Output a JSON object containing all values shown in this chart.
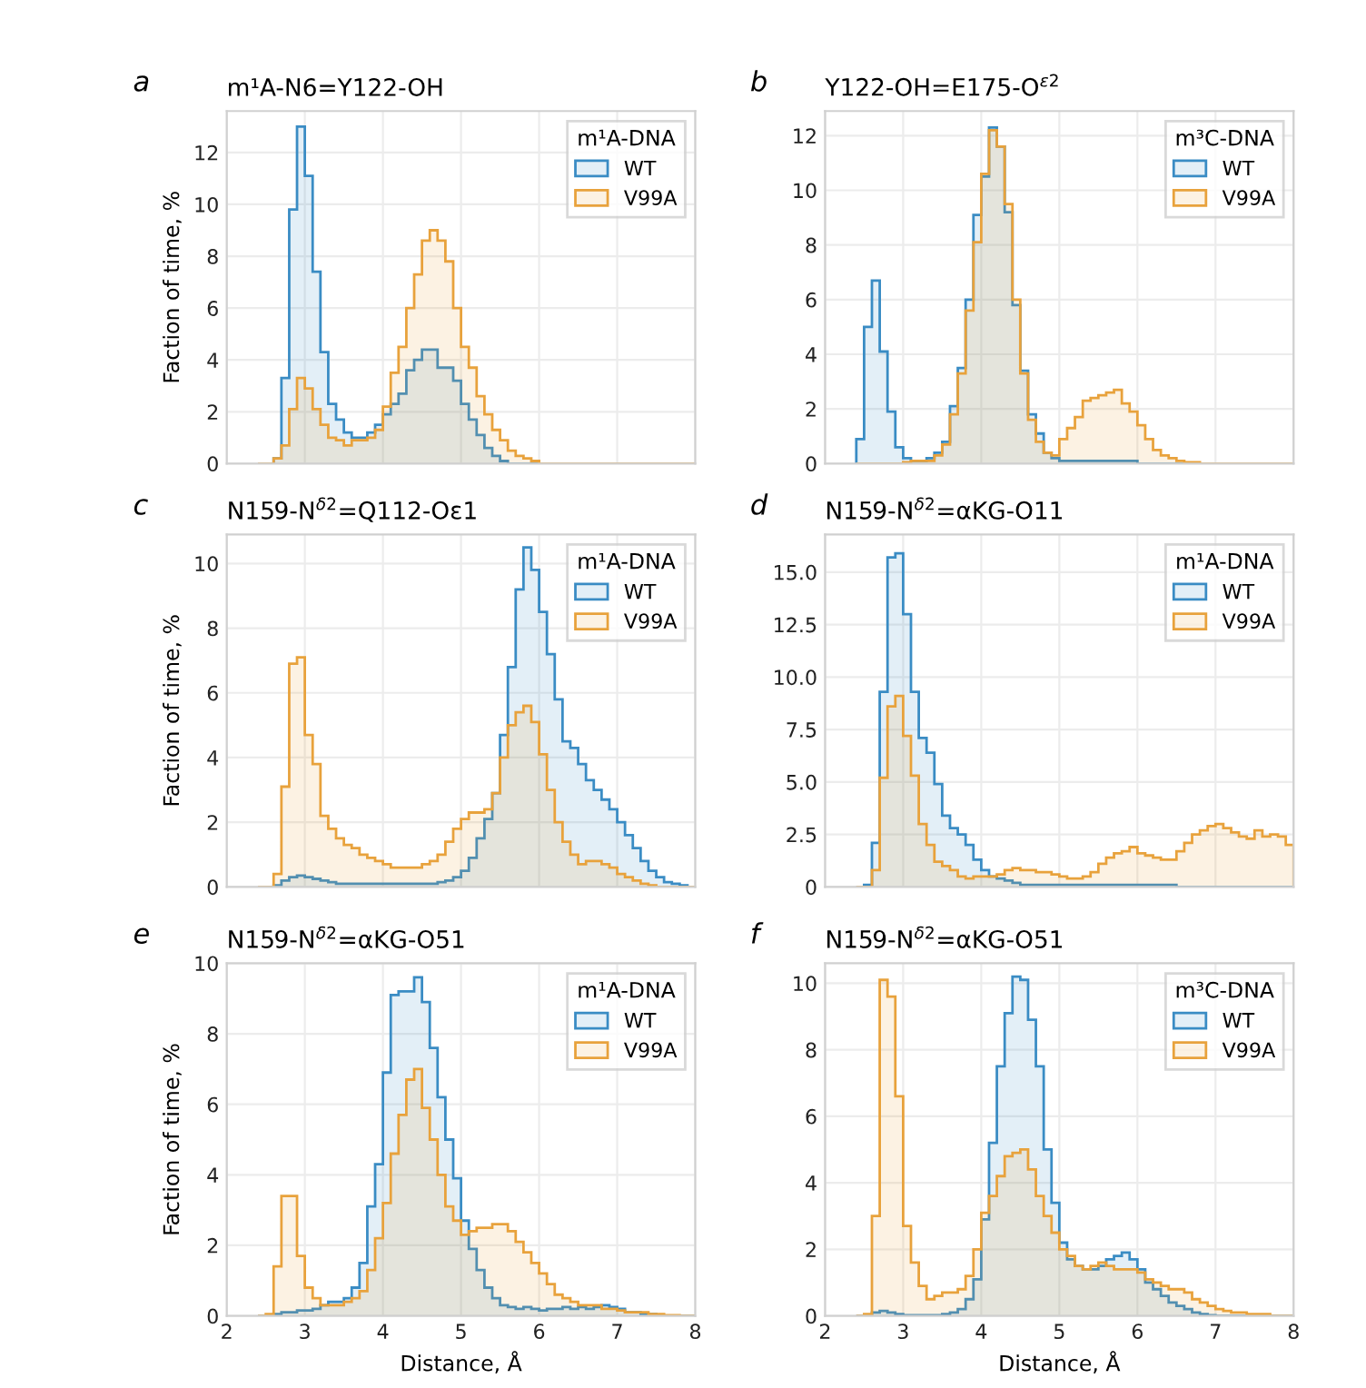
{
  "chart_data": [
    {
      "type": "histogram",
      "title": "m¹A-N6=Y122-OH",
      "annotations": [
        "a"
      ],
      "ylabel": "Faction of time, %",
      "legend_title": "m¹A-DNA",
      "legend": "top right",
      "grid": true,
      "tick_labels": "y",
      "bins": [
        2.4,
        2.5,
        2.6,
        2.7,
        2.8,
        2.9,
        3.0,
        3.1,
        3.2,
        3.3,
        3.4,
        3.5,
        3.6,
        3.7,
        3.8,
        3.9,
        4.0,
        4.1,
        4.2,
        4.3,
        4.4,
        4.5,
        4.6,
        4.7,
        4.8,
        4.9,
        5.0,
        5.1,
        5.2,
        5.3,
        5.4,
        5.5,
        5.6,
        5.7,
        5.8,
        5.9,
        6.0,
        6.1,
        6.2,
        6.3,
        6.4,
        6.5,
        6.6,
        6.7,
        6.8,
        6.9,
        7.0,
        7.1,
        7.2,
        7.3,
        7.4,
        7.5,
        7.6,
        7.7,
        7.8,
        7.9,
        8.0
      ],
      "xlim": [
        2,
        8
      ],
      "xticks": [
        2,
        3,
        4,
        5,
        6,
        7,
        8
      ],
      "ylim": [
        0,
        13.6
      ],
      "yticks": [
        0,
        2,
        4,
        6,
        8,
        10,
        12
      ],
      "series": [
        {
          "name": "WT",
          "color": "#3a8cc4",
          "values": [
            0,
            0,
            0.2,
            3.3,
            9.8,
            13.0,
            11.1,
            7.4,
            4.3,
            2.3,
            1.7,
            1.2,
            1.0,
            1.0,
            1.2,
            1.5,
            1.9,
            2.3,
            2.7,
            3.6,
            4.0,
            4.4,
            4.4,
            3.7,
            3.7,
            3.2,
            2.3,
            1.7,
            1.1,
            0.6,
            0.3,
            0.1,
            0,
            0,
            0,
            0,
            0,
            0,
            0,
            0,
            0,
            0,
            0,
            0,
            0,
            0,
            0,
            0,
            0,
            0,
            0,
            0,
            0,
            0,
            0,
            0
          ]
        },
        {
          "name": "V99A",
          "color": "#e8a23c",
          "values": [
            0,
            0,
            0.2,
            0.7,
            2.1,
            3.3,
            2.9,
            2.1,
            1.5,
            1.0,
            0.9,
            0.7,
            0.9,
            0.9,
            1.0,
            1.3,
            2.2,
            3.5,
            4.5,
            6.0,
            7.3,
            8.6,
            9.0,
            8.6,
            7.8,
            6.0,
            4.5,
            3.7,
            2.6,
            1.9,
            1.3,
            0.9,
            0.5,
            0.3,
            0.2,
            0.1,
            0,
            0,
            0,
            0,
            0,
            0,
            0,
            0,
            0,
            0,
            0,
            0,
            0,
            0,
            0,
            0,
            0,
            0,
            0,
            0
          ]
        }
      ]
    },
    {
      "type": "histogram",
      "title": "Y122-OH=E175-O$^{ε2}$",
      "annotations": [
        "b"
      ],
      "legend_title": "m³C-DNA",
      "legend": "top right",
      "grid": true,
      "tick_labels": "y",
      "bins": [
        2.4,
        2.5,
        2.6,
        2.7,
        2.8,
        2.9,
        3.0,
        3.1,
        3.2,
        3.3,
        3.4,
        3.5,
        3.6,
        3.7,
        3.8,
        3.9,
        4.0,
        4.1,
        4.2,
        4.3,
        4.4,
        4.5,
        4.6,
        4.7,
        4.8,
        4.9,
        5.0,
        5.1,
        5.2,
        5.3,
        5.4,
        5.5,
        5.6,
        5.7,
        5.8,
        5.9,
        6.0,
        6.1,
        6.2,
        6.3,
        6.4,
        6.5,
        6.6,
        6.7,
        6.8,
        6.9,
        7.0,
        7.1,
        7.2,
        7.3,
        7.4,
        7.5,
        7.6,
        7.7,
        7.8,
        7.9,
        8.0
      ],
      "xlim": [
        2,
        8
      ],
      "xticks": [
        2,
        3,
        4,
        5,
        6,
        7,
        8
      ],
      "ylim": [
        0,
        12.9
      ],
      "yticks": [
        0,
        2,
        4,
        6,
        8,
        10,
        12
      ],
      "series": [
        {
          "name": "WT",
          "color": "#3a8cc4",
          "values": [
            0.9,
            5.0,
            6.7,
            4.1,
            1.9,
            0.6,
            0.2,
            0.1,
            0.1,
            0.2,
            0.4,
            0.8,
            2.1,
            3.5,
            6.0,
            9.1,
            10.5,
            12.3,
            11.6,
            9.2,
            5.8,
            3.4,
            1.8,
            1.1,
            0.4,
            0.2,
            0.1,
            0.1,
            0.1,
            0.1,
            0.1,
            0.1,
            0.1,
            0.1,
            0.1,
            0.1,
            0,
            0,
            0,
            0,
            0,
            0,
            0,
            0,
            0,
            0,
            0,
            0,
            0,
            0,
            0,
            0,
            0,
            0,
            0,
            0
          ]
        },
        {
          "name": "V99A",
          "color": "#e8a23c",
          "values": [
            0,
            0,
            0,
            0,
            0,
            0,
            0.05,
            0.1,
            0.1,
            0.1,
            0.3,
            0.7,
            1.8,
            3.3,
            5.6,
            8.1,
            10.6,
            12.2,
            11.6,
            9.5,
            6.0,
            3.3,
            1.6,
            0.8,
            0.4,
            0.3,
            0.9,
            1.3,
            1.7,
            2.3,
            2.4,
            2.5,
            2.6,
            2.7,
            2.2,
            1.9,
            1.4,
            0.9,
            0.5,
            0.3,
            0.2,
            0.1,
            0.05,
            0.05,
            0,
            0,
            0,
            0,
            0,
            0,
            0,
            0,
            0,
            0,
            0,
            0
          ]
        }
      ]
    },
    {
      "type": "histogram",
      "title": "N159-N$^{δ2}$=Q112-Oε1",
      "annotations": [
        "c"
      ],
      "ylabel": "Faction of time, %",
      "legend_title": "m¹A-DNA",
      "legend": "top right",
      "grid": true,
      "tick_labels": "y",
      "bins": [
        2.4,
        2.5,
        2.6,
        2.7,
        2.8,
        2.9,
        3.0,
        3.1,
        3.2,
        3.3,
        3.4,
        3.5,
        3.6,
        3.7,
        3.8,
        3.9,
        4.0,
        4.1,
        4.2,
        4.3,
        4.4,
        4.5,
        4.6,
        4.7,
        4.8,
        4.9,
        5.0,
        5.1,
        5.2,
        5.3,
        5.4,
        5.5,
        5.6,
        5.7,
        5.8,
        5.9,
        6.0,
        6.1,
        6.2,
        6.3,
        6.4,
        6.5,
        6.6,
        6.7,
        6.8,
        6.9,
        7.0,
        7.1,
        7.2,
        7.3,
        7.4,
        7.5,
        7.6,
        7.7,
        7.8,
        7.9,
        8.0
      ],
      "xlim": [
        2,
        8
      ],
      "xticks": [
        2,
        3,
        4,
        5,
        6,
        7,
        8
      ],
      "ylim": [
        0,
        10.9
      ],
      "yticks": [
        0,
        2,
        4,
        6,
        8,
        10
      ],
      "series": [
        {
          "name": "WT",
          "color": "#3a8cc4",
          "values": [
            0,
            0,
            0.05,
            0.2,
            0.3,
            0.35,
            0.3,
            0.25,
            0.2,
            0.15,
            0.1,
            0.1,
            0.1,
            0.1,
            0.1,
            0.1,
            0.1,
            0.1,
            0.1,
            0.1,
            0.1,
            0.1,
            0.1,
            0.15,
            0.2,
            0.3,
            0.5,
            0.9,
            1.5,
            2.1,
            2.9,
            4.7,
            6.8,
            9.2,
            10.5,
            9.8,
            8.5,
            7.2,
            5.8,
            4.5,
            4.3,
            3.8,
            3.3,
            3.0,
            2.7,
            2.4,
            2.0,
            1.6,
            1.2,
            0.8,
            0.5,
            0.3,
            0.15,
            0.1,
            0.05,
            0
          ]
        },
        {
          "name": "V99A",
          "color": "#e8a23c",
          "values": [
            0,
            0,
            0.4,
            3.1,
            6.9,
            7.1,
            4.7,
            3.8,
            2.2,
            1.8,
            1.5,
            1.3,
            1.2,
            1.0,
            0.9,
            0.8,
            0.7,
            0.6,
            0.6,
            0.6,
            0.6,
            0.7,
            0.8,
            1.0,
            1.4,
            1.8,
            2.1,
            2.3,
            2.3,
            2.4,
            2.9,
            4.0,
            5.0,
            5.4,
            5.6,
            5.1,
            4.1,
            3.0,
            2.0,
            1.4,
            1.0,
            0.7,
            0.8,
            0.8,
            0.7,
            0.6,
            0.4,
            0.3,
            0.2,
            0.1,
            0.05,
            0,
            0,
            0,
            0,
            0
          ]
        }
      ]
    },
    {
      "type": "histogram",
      "title": "N159-N$^{δ2}$=αKG-O11",
      "annotations": [
        "d"
      ],
      "legend_title": "m¹A-DNA",
      "legend": "top right",
      "grid": true,
      "tick_labels": "y",
      "bins": [
        2.4,
        2.5,
        2.6,
        2.7,
        2.8,
        2.9,
        3.0,
        3.1,
        3.2,
        3.3,
        3.4,
        3.5,
        3.6,
        3.7,
        3.8,
        3.9,
        4.0,
        4.1,
        4.2,
        4.3,
        4.4,
        4.5,
        4.6,
        4.7,
        4.8,
        4.9,
        5.0,
        5.1,
        5.2,
        5.3,
        5.4,
        5.5,
        5.6,
        5.7,
        5.8,
        5.9,
        6.0,
        6.1,
        6.2,
        6.3,
        6.4,
        6.5,
        6.6,
        6.7,
        6.8,
        6.9,
        7.0,
        7.1,
        7.2,
        7.3,
        7.4,
        7.5,
        7.6,
        7.7,
        7.8,
        7.9,
        8.0
      ],
      "xlim": [
        2,
        8
      ],
      "xticks": [
        2,
        3,
        4,
        5,
        6,
        7,
        8
      ],
      "ylim": [
        0,
        16.8
      ],
      "yticks": [
        0,
        2.5,
        {
          "value": 5,
          "label": "5.0"
        },
        7.5,
        {
          "value": 10,
          "label": "10.0"
        },
        12.5,
        {
          "value": 15,
          "label": "15.0"
        }
      ],
      "series": [
        {
          "name": "WT",
          "color": "#3a8cc4",
          "values": [
            0,
            0.1,
            2.1,
            9.3,
            15.7,
            15.9,
            13.0,
            9.3,
            7.1,
            6.4,
            4.9,
            3.4,
            2.8,
            2.5,
            2.0,
            1.3,
            0.8,
            0.5,
            0.4,
            0.3,
            0.2,
            0.1,
            0.1,
            0.1,
            0.1,
            0.1,
            0.1,
            0.1,
            0.1,
            0.1,
            0.1,
            0.1,
            0.1,
            0.1,
            0.1,
            0.1,
            0.1,
            0.1,
            0.1,
            0.1,
            0.1,
            0,
            0,
            0,
            0,
            0,
            0,
            0,
            0,
            0,
            0,
            0,
            0,
            0,
            0,
            0
          ]
        },
        {
          "name": "V99A",
          "color": "#e8a23c",
          "values": [
            0,
            0,
            0.8,
            5.2,
            8.6,
            9.1,
            7.2,
            5.3,
            3.0,
            2.0,
            1.2,
            1.0,
            0.8,
            0.5,
            0.4,
            0.5,
            0.5,
            0.5,
            0.6,
            0.8,
            0.9,
            0.8,
            0.8,
            0.7,
            0.7,
            0.6,
            0.5,
            0.4,
            0.4,
            0.5,
            0.7,
            1.1,
            1.4,
            1.6,
            1.7,
            1.9,
            1.6,
            1.5,
            1.4,
            1.3,
            1.3,
            1.7,
            2.1,
            2.5,
            2.7,
            2.9,
            3.0,
            2.8,
            2.6,
            2.4,
            2.3,
            2.7,
            2.4,
            2.5,
            2.4,
            2.0
          ]
        }
      ]
    },
    {
      "type": "histogram",
      "title": "N159-N$^{δ2}$=αKG-O51",
      "annotations": [
        "e"
      ],
      "ylabel": "Faction of time, %",
      "xlabel": "Distance, Å",
      "legend_title": "m¹A-DNA",
      "legend": "top right",
      "grid": true,
      "bins": [
        2.4,
        2.5,
        2.6,
        2.7,
        2.8,
        2.9,
        3.0,
        3.1,
        3.2,
        3.3,
        3.4,
        3.5,
        3.6,
        3.7,
        3.8,
        3.9,
        4.0,
        4.1,
        4.2,
        4.3,
        4.4,
        4.5,
        4.6,
        4.7,
        4.8,
        4.9,
        5.0,
        5.1,
        5.2,
        5.3,
        5.4,
        5.5,
        5.6,
        5.7,
        5.8,
        5.9,
        6.0,
        6.1,
        6.2,
        6.3,
        6.4,
        6.5,
        6.6,
        6.7,
        6.8,
        6.9,
        7.0,
        7.1,
        7.2,
        7.3,
        7.4,
        7.5,
        7.6,
        7.7,
        7.8,
        7.9,
        8.0
      ],
      "xlim": [
        2,
        8
      ],
      "xticks": [
        2,
        3,
        4,
        5,
        6,
        7,
        8
      ],
      "ylim": [
        0,
        10
      ],
      "yticks": [
        0,
        2,
        4,
        6,
        8,
        10
      ],
      "series": [
        {
          "name": "WT",
          "color": "#3a8cc4",
          "values": [
            0,
            0,
            0.05,
            0.1,
            0.1,
            0.15,
            0.15,
            0.2,
            0.3,
            0.4,
            0.4,
            0.5,
            0.8,
            1.5,
            3.1,
            4.3,
            6.9,
            9.1,
            9.2,
            9.2,
            9.6,
            8.9,
            7.6,
            6.2,
            5.0,
            3.9,
            2.7,
            1.9,
            1.3,
            0.8,
            0.5,
            0.3,
            0.25,
            0.2,
            0.25,
            0.2,
            0.15,
            0.2,
            0.2,
            0.25,
            0.2,
            0.25,
            0.2,
            0.25,
            0.3,
            0.25,
            0.2,
            0.1,
            0.1,
            0.05,
            0.05,
            0,
            0,
            0,
            0,
            0
          ]
        },
        {
          "name": "V99A",
          "color": "#e8a23c",
          "values": [
            0,
            0.05,
            1.4,
            3.4,
            3.4,
            1.7,
            0.8,
            0.5,
            0.3,
            0.3,
            0.3,
            0.4,
            0.5,
            0.7,
            1.3,
            2.2,
            3.2,
            4.6,
            5.7,
            6.7,
            7.0,
            5.9,
            5.0,
            4.0,
            3.1,
            2.7,
            2.3,
            2.4,
            2.5,
            2.5,
            2.6,
            2.6,
            2.4,
            2.1,
            1.8,
            1.5,
            1.2,
            0.9,
            0.6,
            0.5,
            0.4,
            0.3,
            0.3,
            0.3,
            0.2,
            0.2,
            0.15,
            0.1,
            0.1,
            0.1,
            0.05,
            0.05,
            0.02,
            0.02,
            0,
            0
          ]
        }
      ]
    },
    {
      "type": "histogram",
      "title": "N159-N$^{δ2}$=αKG-O51",
      "annotations": [
        "f"
      ],
      "xlabel": "Distance, Å",
      "legend_title": "m³C-DNA",
      "legend": "top right",
      "grid": true,
      "bins": [
        2.4,
        2.5,
        2.6,
        2.7,
        2.8,
        2.9,
        3.0,
        3.1,
        3.2,
        3.3,
        3.4,
        3.5,
        3.6,
        3.7,
        3.8,
        3.9,
        4.0,
        4.1,
        4.2,
        4.3,
        4.4,
        4.5,
        4.6,
        4.7,
        4.8,
        4.9,
        5.0,
        5.1,
        5.2,
        5.3,
        5.4,
        5.5,
        5.6,
        5.7,
        5.8,
        5.9,
        6.0,
        6.1,
        6.2,
        6.3,
        6.4,
        6.5,
        6.6,
        6.7,
        6.8,
        6.9,
        7.0,
        7.1,
        7.2,
        7.3,
        7.4,
        7.5,
        7.6,
        7.7,
        7.8,
        7.9,
        8.0
      ],
      "xlim": [
        2,
        8
      ],
      "xticks": [
        2,
        3,
        4,
        5,
        6,
        7,
        8
      ],
      "ylim": [
        0,
        10.6
      ],
      "yticks": [
        0,
        2,
        4,
        6,
        8,
        10
      ],
      "series": [
        {
          "name": "WT",
          "color": "#3a8cc4",
          "values": [
            0,
            0,
            0.1,
            0.15,
            0.1,
            0.05,
            0.02,
            0.02,
            0.02,
            0.02,
            0.02,
            0.05,
            0.1,
            0.2,
            0.5,
            1.1,
            2.9,
            5.2,
            7.5,
            9.1,
            10.2,
            10.1,
            8.9,
            7.5,
            5.0,
            3.4,
            2.2,
            1.7,
            1.5,
            1.4,
            1.4,
            1.5,
            1.7,
            1.8,
            1.9,
            1.7,
            1.4,
            1.0,
            0.8,
            0.6,
            0.4,
            0.3,
            0.2,
            0.1,
            0.05,
            0.02,
            0,
            0,
            0,
            0,
            0,
            0,
            0,
            0,
            0,
            0
          ]
        },
        {
          "name": "V99A",
          "color": "#e8a23c",
          "values": [
            0,
            0.05,
            3.0,
            10.1,
            9.6,
            6.6,
            2.7,
            1.6,
            0.9,
            0.5,
            0.6,
            0.7,
            0.7,
            0.8,
            1.2,
            2.0,
            3.1,
            3.6,
            4.2,
            4.8,
            4.9,
            5.0,
            4.4,
            3.6,
            3.0,
            2.5,
            2.0,
            1.8,
            1.5,
            1.4,
            1.5,
            1.6,
            1.5,
            1.4,
            1.4,
            1.4,
            1.3,
            1.1,
            1.0,
            0.9,
            0.8,
            0.8,
            0.7,
            0.5,
            0.4,
            0.3,
            0.2,
            0.15,
            0.1,
            0.1,
            0.05,
            0.05,
            0.05,
            0,
            0,
            0
          ]
        }
      ]
    }
  ]
}
